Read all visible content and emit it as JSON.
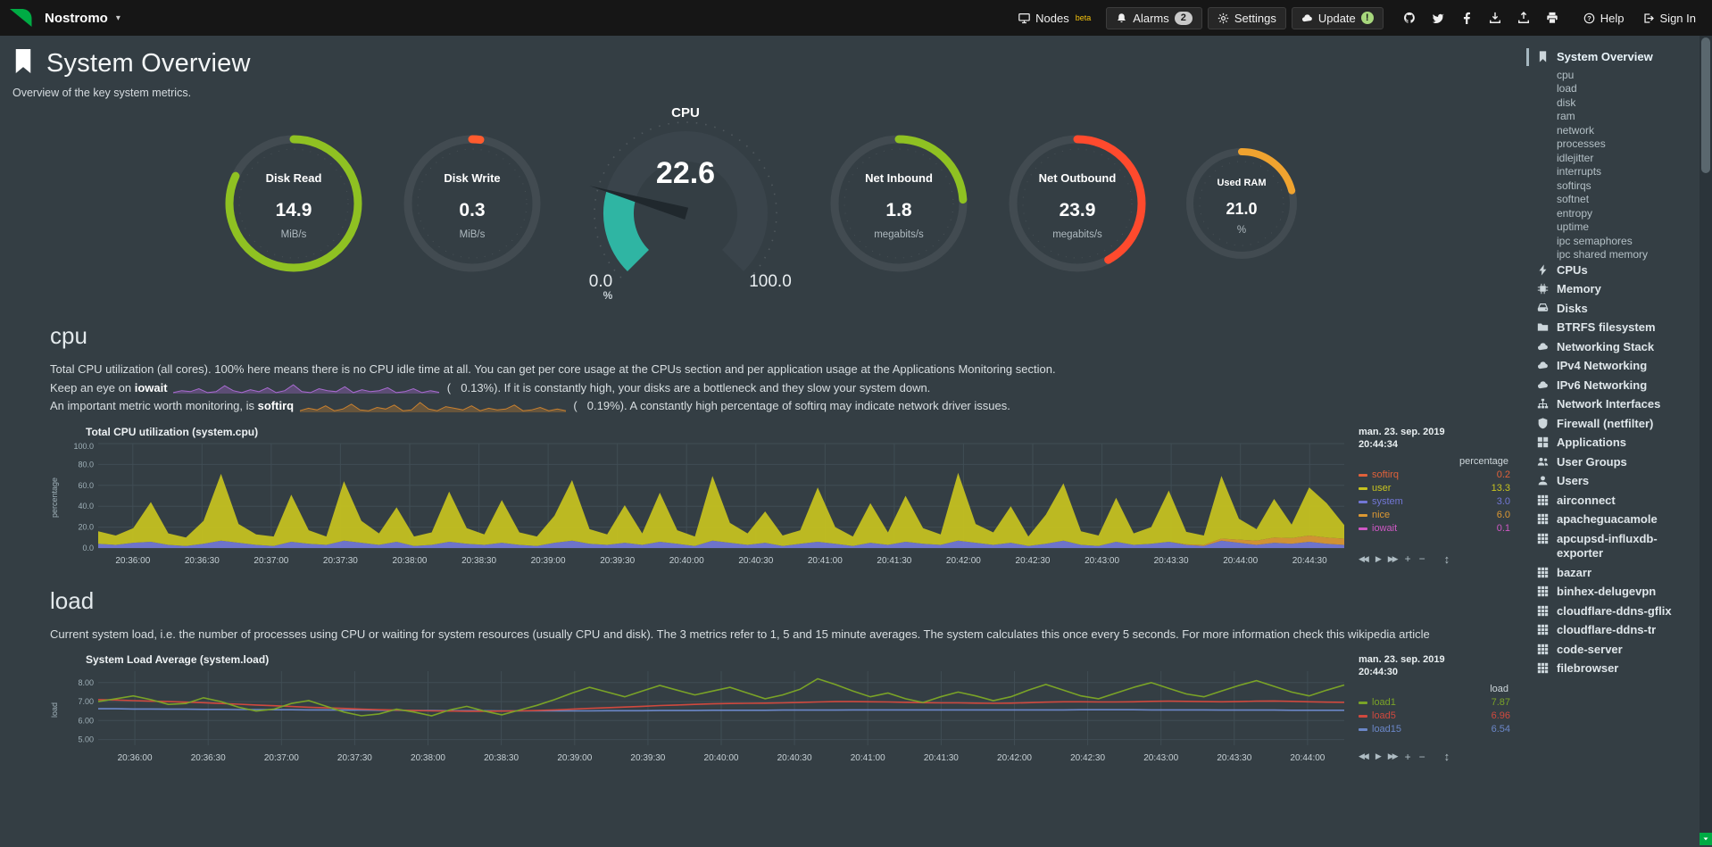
{
  "navbar": {
    "brand": "Nostromo",
    "menu": [
      {
        "id": "nodes",
        "label": "Nodes",
        "icon": "monitor",
        "sup": "beta",
        "boxed": false
      },
      {
        "id": "alarms",
        "label": "Alarms",
        "icon": "bell",
        "badge": "2",
        "boxed": true
      },
      {
        "id": "settings",
        "label": "Settings",
        "icon": "gear",
        "boxed": true
      },
      {
        "id": "update",
        "label": "Update",
        "icon": "cloud",
        "badge": "!",
        "badge_style": "green",
        "boxed": true
      }
    ],
    "icon_links": [
      "github",
      "twitter",
      "facebook",
      "download",
      "upload",
      "print"
    ],
    "help_label": "Help",
    "signin_label": "Sign In"
  },
  "header": {
    "title": "System Overview",
    "subtitle": "Overview of the key system metrics."
  },
  "gauges": [
    {
      "id": "disk-read",
      "kind": "ring",
      "size": "normal",
      "title": "Disk Read",
      "value": "14.9",
      "unit": "MiB/s",
      "color": "#8fc122",
      "percent": 82
    },
    {
      "id": "disk-write",
      "kind": "ring",
      "size": "normal",
      "title": "Disk Write",
      "value": "0.3",
      "unit": "MiB/s",
      "color": "#ff5b2e",
      "percent": 2
    },
    {
      "id": "cpu",
      "kind": "gauge",
      "title": "CPU",
      "value": "22.6",
      "min": "0.0",
      "max": "100.0",
      "unit": "%",
      "color": "#2fb5a3",
      "percent": 22.6
    },
    {
      "id": "net-inbound",
      "kind": "ring",
      "size": "normal",
      "title": "Net Inbound",
      "value": "1.8",
      "unit": "megabits/s",
      "color": "#8fc122",
      "percent": 24
    },
    {
      "id": "net-outbound",
      "kind": "ring",
      "size": "normal",
      "title": "Net Outbound",
      "value": "23.9",
      "unit": "megabits/s",
      "color": "#ff4a2d",
      "percent": 42
    },
    {
      "id": "used-ram",
      "kind": "ring",
      "size": "small",
      "title": "Used RAM",
      "value": "21.0",
      "unit": "%",
      "color": "#f0a32f",
      "percent": 21
    }
  ],
  "cpu_section": {
    "heading": "cpu",
    "line1": "Total CPU utilization (all cores). 100% here means there is no CPU idle time at all. You can get per core usage at the CPUs section and per application usage at the Applications Monitoring section.",
    "line2_prefix": "Keep an eye on ",
    "line2_bold": "iowait",
    "line2_open": " (",
    "line2_value": "0.13%",
    "line2_close": "). If it is constantly high, your disks are a bottleneck and they slow your system down.",
    "line3_prefix": "An important metric worth monitoring, is ",
    "line3_bold": "softirq",
    "line3_open": " (",
    "line3_value": "0.19%",
    "line3_close": "). A constantly high percentage of softirq may indicate network driver issues.",
    "iowait_color": "#a96bd1",
    "softirq_color": "#c9802f",
    "iowait_spark": [
      0.1,
      0.3,
      0.2,
      0.5,
      0.1,
      0.2,
      0.8,
      0.3,
      0.1,
      0.4,
      0.2,
      0.6,
      0.1,
      0.3,
      0.9,
      0.2,
      0.1,
      0.5,
      0.3,
      0.2,
      0.7,
      0.1,
      0.4,
      0.2,
      0.3,
      0.6,
      0.1,
      0.2,
      0.5,
      0.1,
      0.3,
      0.13
    ],
    "softirq_spark": [
      0.2,
      0.5,
      0.3,
      0.8,
      0.2,
      0.4,
      1.0,
      0.3,
      0.2,
      0.6,
      0.4,
      0.9,
      0.2,
      0.3,
      1.2,
      0.4,
      0.2,
      0.7,
      0.5,
      0.3,
      0.8,
      0.2,
      0.5,
      0.3,
      0.4,
      0.9,
      0.2,
      0.3,
      0.6,
      0.2,
      0.4,
      0.19
    ]
  },
  "load_section": {
    "heading": "load",
    "desc": "Current system load, i.e. the number of processes using CPU or waiting for system resources (usually CPU and disk). The 3 metrics refer to 1, 5 and 15 minute averages. The system calculates this once every 5 seconds. For more information check this",
    "link_text": "wikipedia article"
  },
  "chart_toolbar": [
    {
      "icon": "backward",
      "glyph": "◀◀"
    },
    {
      "icon": "play",
      "glyph": "▶"
    },
    {
      "icon": "forward",
      "glyph": "▶▶"
    },
    {
      "icon": "zoom-in",
      "glyph": "+"
    },
    {
      "icon": "zoom-out",
      "glyph": "−"
    },
    {
      "icon": "resize",
      "glyph": "↕"
    }
  ],
  "chart_data": [
    {
      "type": "area",
      "stacked": true,
      "title": "Total CPU utilization (system.cpu)",
      "ylabel": "percentage",
      "unit_header": "percentage",
      "date": "man. 23. sep. 2019",
      "time": "20:44:34",
      "ylim": [
        0,
        100
      ],
      "yticks": [
        [
          0,
          "0.0"
        ],
        [
          20,
          "20.0"
        ],
        [
          40,
          "40.0"
        ],
        [
          60,
          "60.0"
        ],
        [
          80,
          "80.0"
        ],
        [
          100,
          "100.0"
        ]
      ],
      "xticks": [
        "20:36:00",
        "20:36:30",
        "20:37:00",
        "20:37:30",
        "20:38:00",
        "20:38:30",
        "20:39:00",
        "20:39:30",
        "20:40:00",
        "20:40:30",
        "20:41:00",
        "20:41:30",
        "20:42:00",
        "20:42:30",
        "20:43:00",
        "20:43:30",
        "20:44:00",
        "20:44:30"
      ],
      "legend": [
        {
          "name": "softirq",
          "value": "0.2",
          "color": "#e0613a"
        },
        {
          "name": "user",
          "value": "13.3",
          "color": "#c7c31f"
        },
        {
          "name": "system",
          "value": "3.0",
          "color": "#7277d5"
        },
        {
          "name": "nice",
          "value": "6.0",
          "color": "#dd9933"
        },
        {
          "name": "iowait",
          "value": "0.1",
          "color": "#cf58c4"
        }
      ],
      "series": [
        {
          "name": "system",
          "color": "#7277d5",
          "values": [
            4,
            3,
            5,
            6,
            3,
            2,
            4,
            7,
            5,
            3,
            2,
            6,
            4,
            3,
            7,
            5,
            3,
            6,
            2,
            3,
            6,
            4,
            3,
            5,
            3,
            2,
            5,
            7,
            4,
            3,
            5,
            3,
            6,
            4,
            2,
            7,
            5,
            3,
            5,
            2,
            4,
            6,
            4,
            2,
            5,
            3,
            6,
            4,
            3,
            7,
            5,
            3,
            5,
            2,
            4,
            7,
            3,
            2,
            6,
            3,
            4,
            6,
            3,
            2,
            7,
            5,
            3,
            5,
            4,
            6,
            4,
            3
          ]
        },
        {
          "name": "nice",
          "color": "#dd9933",
          "values": [
            0,
            0,
            0,
            0,
            0,
            0,
            0,
            0,
            0,
            0,
            0,
            0,
            0,
            0,
            0,
            0,
            0,
            0,
            0,
            0,
            0,
            0,
            0,
            0,
            0,
            0,
            0,
            0,
            0,
            0,
            0,
            0,
            0,
            0,
            0,
            0,
            0,
            0,
            0,
            0,
            0,
            0,
            0,
            0,
            0,
            0,
            0,
            0,
            0,
            0,
            0,
            0,
            0,
            0,
            0,
            0,
            0,
            0,
            0,
            0,
            0,
            0,
            0.5,
            1,
            2,
            3,
            4,
            5,
            5.5,
            6,
            6,
            6
          ]
        },
        {
          "name": "user",
          "color": "#c7c31f",
          "values": [
            12,
            9,
            14,
            38,
            11,
            8,
            22,
            64,
            18,
            10,
            9,
            45,
            13,
            8,
            57,
            21,
            11,
            33,
            9,
            12,
            48,
            15,
            10,
            41,
            12,
            9,
            26,
            58,
            14,
            10,
            36,
            11,
            47,
            13,
            9,
            62,
            19,
            11,
            30,
            10,
            13,
            52,
            16,
            9,
            38,
            12,
            44,
            15,
            10,
            65,
            18,
            12,
            35,
            9,
            28,
            55,
            13,
            10,
            42,
            11,
            16,
            49,
            12,
            9,
            60,
            20,
            11,
            37,
            13,
            46,
            33,
            13
          ]
        }
      ]
    },
    {
      "type": "line",
      "stacked": false,
      "title": "System Load Average (system.load)",
      "ylabel": "load",
      "unit_header": "load",
      "date": "man. 23. sep. 2019",
      "time": "20:44:30",
      "ylim": [
        4.7,
        8.6
      ],
      "yticks": [
        [
          5,
          "5.00"
        ],
        [
          6,
          "6.00"
        ],
        [
          7,
          "7.00"
        ],
        [
          8,
          "8.00"
        ]
      ],
      "xticks": [
        "20:36:00",
        "20:36:30",
        "20:37:00",
        "20:37:30",
        "20:38:00",
        "20:38:30",
        "20:39:00",
        "20:39:30",
        "20:40:00",
        "20:40:30",
        "20:41:00",
        "20:41:30",
        "20:42:00",
        "20:42:30",
        "20:43:00",
        "20:43:30",
        "20:44:00"
      ],
      "legend": [
        {
          "name": "load1",
          "value": "7.87",
          "color": "#7aa327"
        },
        {
          "name": "load5",
          "value": "6.96",
          "color": "#d0493e"
        },
        {
          "name": "load15",
          "value": "6.54",
          "color": "#6b87c8"
        }
      ],
      "series": [
        {
          "name": "load15",
          "color": "#6b87c8",
          "values": [
            6.62,
            6.62,
            6.61,
            6.61,
            6.6,
            6.6,
            6.59,
            6.59,
            6.58,
            6.58,
            6.57,
            6.57,
            6.56,
            6.56,
            6.55,
            6.55,
            6.54,
            6.54,
            6.53,
            6.53,
            6.52,
            6.52,
            6.52,
            6.51,
            6.51,
            6.51,
            6.51,
            6.51,
            6.51,
            6.52,
            6.52,
            6.52,
            6.53,
            6.53,
            6.53,
            6.54,
            6.54,
            6.54,
            6.54,
            6.55,
            6.55,
            6.55,
            6.55,
            6.56,
            6.56,
            6.56,
            6.56,
            6.56,
            6.56,
            6.56,
            6.56,
            6.56,
            6.56,
            6.56,
            6.56,
            6.56,
            6.57,
            6.57,
            6.57,
            6.57,
            6.56,
            6.56,
            6.56,
            6.56,
            6.55,
            6.55,
            6.55,
            6.55,
            6.54,
            6.54,
            6.54,
            6.54
          ]
        },
        {
          "name": "load5",
          "color": "#d0493e",
          "values": [
            7.1,
            7.08,
            7.05,
            7.02,
            7.0,
            6.97,
            6.94,
            6.9,
            6.86,
            6.82,
            6.78,
            6.74,
            6.7,
            6.67,
            6.64,
            6.6,
            6.57,
            6.55,
            6.53,
            6.51,
            6.5,
            6.49,
            6.49,
            6.5,
            6.51,
            6.53,
            6.56,
            6.6,
            6.64,
            6.68,
            6.71,
            6.75,
            6.79,
            6.82,
            6.85,
            6.88,
            6.9,
            6.91,
            6.92,
            6.93,
            6.95,
            6.98,
            7.0,
            7.0,
            6.99,
            6.98,
            6.96,
            6.94,
            6.93,
            6.93,
            6.92,
            6.91,
            6.92,
            6.94,
            6.97,
            6.99,
            6.99,
            6.98,
            6.98,
            6.99,
            7.01,
            7.02,
            7.01,
            7.0,
            6.99,
            7.0,
            7.02,
            7.03,
            7.01,
            6.99,
            6.97,
            6.96
          ]
        },
        {
          "name": "load1",
          "color": "#7aa327",
          "values": [
            7.0,
            7.15,
            7.3,
            7.1,
            6.85,
            6.9,
            7.2,
            7.0,
            6.7,
            6.5,
            6.6,
            6.9,
            7.05,
            6.75,
            6.45,
            6.25,
            6.35,
            6.6,
            6.45,
            6.25,
            6.55,
            6.75,
            6.5,
            6.3,
            6.55,
            6.8,
            7.1,
            7.45,
            7.75,
            7.5,
            7.25,
            7.55,
            7.85,
            7.6,
            7.35,
            7.55,
            7.75,
            7.45,
            7.15,
            7.35,
            7.65,
            8.2,
            7.9,
            7.55,
            7.25,
            7.45,
            7.15,
            6.95,
            7.25,
            7.5,
            7.3,
            7.05,
            7.25,
            7.6,
            7.9,
            7.6,
            7.3,
            7.15,
            7.45,
            7.75,
            8.0,
            7.7,
            7.4,
            7.25,
            7.55,
            7.85,
            8.1,
            7.8,
            7.5,
            7.3,
            7.6,
            7.87
          ]
        }
      ]
    }
  ],
  "sidebar": {
    "items": [
      {
        "label": "System Overview",
        "icon": "bookmark",
        "type": "section",
        "active": true
      },
      {
        "label": "cpu",
        "type": "sub"
      },
      {
        "label": "load",
        "type": "sub"
      },
      {
        "label": "disk",
        "type": "sub"
      },
      {
        "label": "ram",
        "type": "sub"
      },
      {
        "label": "network",
        "type": "sub"
      },
      {
        "label": "processes",
        "type": "sub"
      },
      {
        "label": "idlejitter",
        "type": "sub"
      },
      {
        "label": "interrupts",
        "type": "sub"
      },
      {
        "label": "softirqs",
        "type": "sub"
      },
      {
        "label": "softnet",
        "type": "sub"
      },
      {
        "label": "entropy",
        "type": "sub"
      },
      {
        "label": "uptime",
        "type": "sub"
      },
      {
        "label": "ipc semaphores",
        "type": "sub"
      },
      {
        "label": "ipc shared memory",
        "type": "sub"
      },
      {
        "label": "CPUs",
        "icon": "bolt",
        "type": "section"
      },
      {
        "label": "Memory",
        "icon": "chip",
        "type": "section"
      },
      {
        "label": "Disks",
        "icon": "hdd",
        "type": "section"
      },
      {
        "label": "BTRFS filesystem",
        "icon": "folder",
        "type": "section"
      },
      {
        "label": "Networking Stack",
        "icon": "cloud",
        "type": "section"
      },
      {
        "label": "IPv4 Networking",
        "icon": "cloud",
        "type": "section"
      },
      {
        "label": "IPv6 Networking",
        "icon": "cloud",
        "type": "section"
      },
      {
        "label": "Network Interfaces",
        "icon": "sitemap",
        "type": "section"
      },
      {
        "label": "Firewall (netfilter)",
        "icon": "shield",
        "type": "section"
      },
      {
        "label": "Applications",
        "icon": "grid-large",
        "type": "section"
      },
      {
        "label": "User Groups",
        "icon": "users",
        "type": "section"
      },
      {
        "label": "Users",
        "icon": "user",
        "type": "section"
      },
      {
        "label": "airconnect",
        "icon": "grid",
        "type": "section"
      },
      {
        "label": "apacheguacamole",
        "icon": "grid",
        "type": "section"
      },
      {
        "label": "apcupsd-influxdb-exporter",
        "icon": "grid",
        "type": "section"
      },
      {
        "label": "bazarr",
        "icon": "grid",
        "type": "section"
      },
      {
        "label": "binhex-delugevpn",
        "icon": "grid",
        "type": "section"
      },
      {
        "label": "cloudflare-ddns-gflix",
        "icon": "grid",
        "type": "section"
      },
      {
        "label": "cloudflare-ddns-tr",
        "icon": "grid",
        "type": "section"
      },
      {
        "label": "code-server",
        "icon": "grid",
        "type": "section"
      },
      {
        "label": "filebrowser",
        "icon": "grid",
        "type": "section"
      }
    ]
  },
  "colors": {
    "accent_green": "#00ab44",
    "background": "#343e44",
    "navbar": "#161616"
  }
}
